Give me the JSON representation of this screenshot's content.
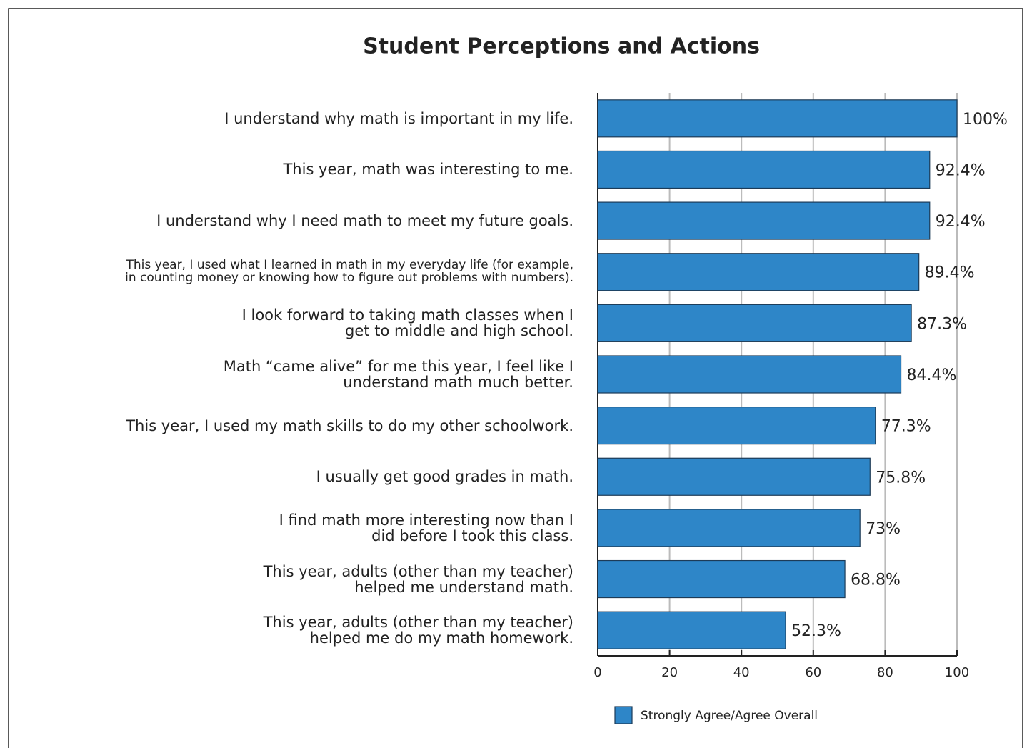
{
  "chart_data": {
    "type": "bar",
    "orientation": "horizontal",
    "title": "Student Perceptions and Actions",
    "categories": [
      "I understand why math is important in my life.",
      "This year, math was interesting to me.",
      "I understand why I need math to meet my future goals.",
      "This year, I used what I learned in math in my everyday  life (for example,\nin counting money or knowing how to figure out problems with numbers).",
      "I look forward to taking math classes when I\nget to middle and high school.",
      "Math “came alive”  for me this year, I feel like I\nunderstand math much better.",
      "This year, I used my math skills to do my other schoolwork.",
      "I usually get good grades in math.",
      "I find math more interesting now than I\ndid before I took this class.",
      "This year, adults (other than my teacher)\nhelped me understand math.",
      "This year, adults (other than my teacher)\nhelped me do my math homework."
    ],
    "series": [
      {
        "name": "Strongly Agree/Agree Overall",
        "color": "#2e86c8",
        "values": [
          100,
          92.4,
          92.4,
          89.4,
          87.3,
          84.4,
          77.3,
          75.8,
          73,
          68.8,
          52.3
        ],
        "value_labels": [
          "100%",
          "92.4%",
          "92.4%",
          "89.4%",
          "87.3%",
          "84.4%",
          "77.3%",
          "75.8%",
          "73%",
          "68.8%",
          "52.3%"
        ]
      }
    ],
    "xlim": [
      0,
      100
    ],
    "xticks": [
      0,
      20,
      40,
      60,
      80,
      100
    ],
    "grid": true,
    "legend": "bottom"
  }
}
